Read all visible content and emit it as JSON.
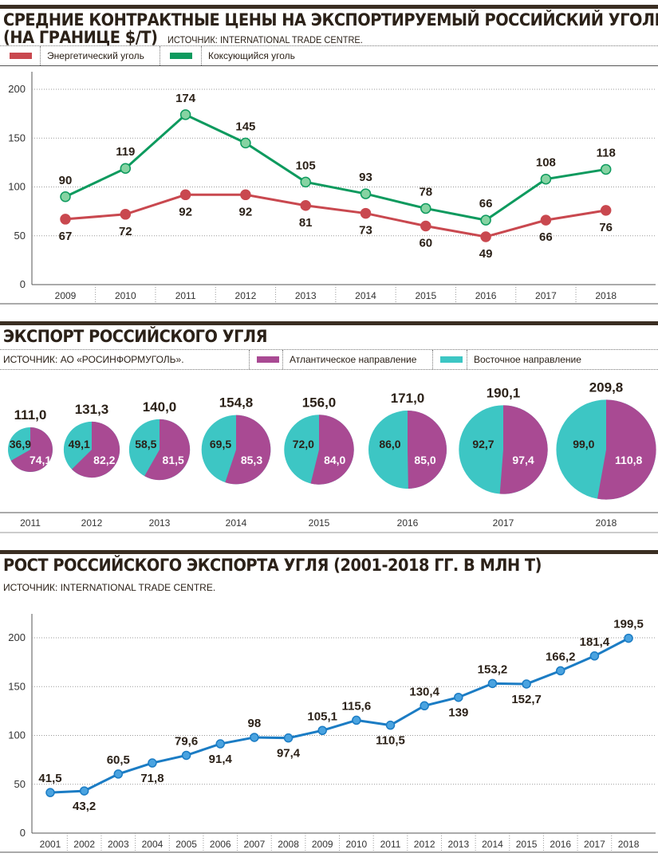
{
  "colors": {
    "energy": "#c9484f",
    "coking": "#0d9a5e",
    "coking_marker": "#86d3a2",
    "atlantic": "#a94a93",
    "eastern": "#3dc6c4",
    "growth": "#1b7cc4",
    "growth_marker": "#4aa3e0"
  },
  "section1": {
    "title_line1": "СРЕДНИЕ КОНТРАКТНЫЕ ЦЕНЫ НА ЭКСПОРТИРУЕМЫЙ РОССИЙСКИЙ УГОЛЬ",
    "title_line2": "(НА ГРАНИЦЕ $/Т)",
    "source": "ИСТОЧНИК: INTERNATIONAL TRADE CENTRE."
  },
  "section2": {
    "title": "ЭКСПОРТ РОССИЙСКОГО УГЛЯ",
    "source": "ИСТОЧНИК: АО «РОСИНФОРМУГОЛЬ»."
  },
  "section3": {
    "title": "РОСТ РОССИЙСКОГО ЭКСПОРТА УГЛЯ (2001-2018 ГГ. В МЛН Т)",
    "source": "ИСТОЧНИК: INTERNATIONAL TRADE CENTRE."
  },
  "chart_data": [
    {
      "type": "line",
      "title": "Средние контрактные цены на экспортируемый российский уголь (на границе $/т)",
      "categories": [
        "2009",
        "2010",
        "2011",
        "2012",
        "2013",
        "2014",
        "2015",
        "2016",
        "2017",
        "2018"
      ],
      "series": [
        {
          "name": "Энергетический уголь",
          "values": [
            67,
            72,
            92,
            92,
            81,
            73,
            60,
            49,
            66,
            76
          ],
          "labels": [
            "67",
            "72",
            "92",
            "92",
            "81",
            "73",
            "60",
            "49",
            "66",
            "76"
          ]
        },
        {
          "name": "Коксующийся уголь",
          "values": [
            90,
            119,
            174,
            145,
            105,
            93,
            78,
            66,
            108,
            118
          ],
          "labels": [
            "90",
            "119",
            "174",
            "145",
            "105",
            "93",
            "78",
            "66",
            "108",
            "118"
          ]
        }
      ],
      "yticks": [
        "0",
        "50",
        "100",
        "150",
        "200"
      ],
      "ylim": [
        0,
        200
      ],
      "grid": true,
      "legend": "top"
    },
    {
      "type": "pie",
      "title": "Экспорт российского угля",
      "categories": [
        "2011",
        "2012",
        "2013",
        "2014",
        "2015",
        "2016",
        "2017",
        "2018"
      ],
      "totals": [
        "111,0",
        "131,3",
        "140,0",
        "154,8",
        "156,0",
        "171,0",
        "190,1",
        "209,8"
      ],
      "series": [
        {
          "name": "Атлантическое направление",
          "values": [
            74.1,
            82.2,
            81.5,
            85.3,
            84.0,
            85.0,
            97.4,
            110.8
          ],
          "labels": [
            "74,1",
            "82,2",
            "81,5",
            "85,3",
            "84,0",
            "85,0",
            "97,4",
            "110,8"
          ]
        },
        {
          "name": "Восточное направление",
          "values": [
            36.9,
            49.1,
            58.5,
            69.5,
            72.0,
            86.0,
            92.7,
            99.0
          ],
          "labels": [
            "36,9",
            "49,1",
            "58,5",
            "69,5",
            "72,0",
            "86,0",
            "92,7",
            "99,0"
          ]
        }
      ],
      "legend": "top"
    },
    {
      "type": "line",
      "title": "Рост российского экспорта угля (2001-2018 гг. в млн т)",
      "categories": [
        "2001",
        "2002",
        "2003",
        "2004",
        "2005",
        "2006",
        "2007",
        "2008",
        "2009",
        "2010",
        "2011",
        "2012",
        "2013",
        "2014",
        "2015",
        "2016",
        "2017",
        "2018"
      ],
      "values": [
        41.5,
        43.2,
        60.5,
        71.8,
        79.6,
        91.4,
        98,
        97.4,
        105.1,
        115.6,
        110.5,
        130.4,
        139,
        153.2,
        152.7,
        166.2,
        181.4,
        199.5
      ],
      "labels": [
        "41,5",
        "43,2",
        "60,5",
        "71,8",
        "79,6",
        "91,4",
        "98",
        "97,4",
        "105,1",
        "115,6",
        "110,5",
        "130,4",
        "139",
        "153,2",
        "152,7",
        "166,2",
        "181,4",
        "199,5"
      ],
      "label_side": [
        "above",
        "below",
        "above",
        "below",
        "above",
        "below",
        "above",
        "below",
        "above",
        "above",
        "below",
        "above",
        "below",
        "above",
        "below",
        "above",
        "above",
        "above"
      ],
      "yticks": [
        "0",
        "50",
        "100",
        "150",
        "200"
      ],
      "ylim": [
        0,
        200
      ],
      "grid": true
    }
  ]
}
